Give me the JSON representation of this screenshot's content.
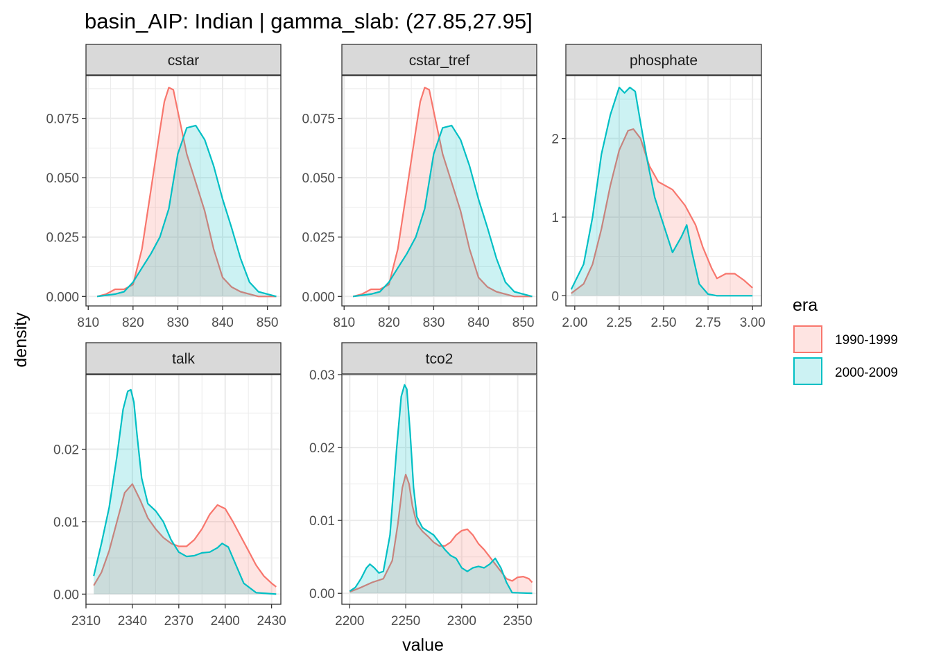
{
  "title": "basin_AIP: Indian | gamma_slab: (27.85,27.95]",
  "xlabel": "value",
  "ylabel": "density",
  "legend": {
    "title": "era",
    "position": "right",
    "entries": [
      {
        "label": "1990-1999",
        "color": "#F8766D"
      },
      {
        "label": "2000-2009",
        "color": "#00BFC4"
      }
    ]
  },
  "colors": {
    "era_1990": "#F8766D",
    "era_2000": "#00BFC4",
    "grid": "#ebebeb",
    "strip": "#d9d9d9"
  },
  "chart_data": [
    {
      "type": "area",
      "panel": "cstar",
      "xlim": [
        809.5,
        853
      ],
      "ylim": [
        -0.004,
        0.093
      ],
      "xticks": [
        810,
        820,
        830,
        840,
        850
      ],
      "xtick_labels": [
        "810",
        "820",
        "830",
        "840",
        "850"
      ],
      "yticks": [
        0,
        0.025,
        0.05,
        0.075
      ],
      "ytick_labels": [
        "0.000",
        "0.025",
        "0.050",
        "0.075"
      ],
      "grid": true,
      "series": [
        {
          "name": "1990-1999",
          "x": [
            812,
            814,
            816,
            818,
            820,
            822,
            824,
            826,
            827,
            828,
            829,
            830,
            832,
            834,
            836,
            838,
            840,
            842,
            844,
            846,
            848,
            850,
            852
          ],
          "y": [
            0.0,
            0.001,
            0.003,
            0.003,
            0.005,
            0.02,
            0.045,
            0.07,
            0.082,
            0.088,
            0.087,
            0.078,
            0.06,
            0.048,
            0.036,
            0.02,
            0.008,
            0.004,
            0.002,
            0.001,
            0.0,
            0.0,
            0.0
          ]
        },
        {
          "name": "2000-2009",
          "x": [
            812,
            816,
            818,
            820,
            822,
            824,
            826,
            828,
            830,
            832,
            834,
            836,
            838,
            840,
            842,
            844,
            846,
            848,
            850,
            852
          ],
          "y": [
            0.0,
            0.001,
            0.002,
            0.006,
            0.012,
            0.018,
            0.025,
            0.037,
            0.06,
            0.071,
            0.072,
            0.066,
            0.055,
            0.041,
            0.029,
            0.016,
            0.006,
            0.002,
            0.001,
            0.0
          ]
        }
      ]
    },
    {
      "type": "area",
      "panel": "cstar_tref",
      "xlim": [
        809.5,
        853
      ],
      "ylim": [
        -0.004,
        0.093
      ],
      "xticks": [
        810,
        820,
        830,
        840,
        850
      ],
      "xtick_labels": [
        "810",
        "820",
        "830",
        "840",
        "850"
      ],
      "yticks": [
        0,
        0.025,
        0.05,
        0.075
      ],
      "ytick_labels": [
        "0.000",
        "0.025",
        "0.050",
        "0.075"
      ],
      "grid": true,
      "series": [
        {
          "name": "1990-1999",
          "x": [
            812,
            814,
            816,
            818,
            820,
            822,
            824,
            826,
            827,
            828,
            829,
            830,
            832,
            834,
            836,
            838,
            840,
            842,
            844,
            846,
            848,
            850,
            852
          ],
          "y": [
            0.0,
            0.001,
            0.003,
            0.003,
            0.005,
            0.02,
            0.045,
            0.07,
            0.082,
            0.088,
            0.087,
            0.078,
            0.06,
            0.048,
            0.036,
            0.02,
            0.008,
            0.004,
            0.002,
            0.001,
            0.0,
            0.0,
            0.0
          ]
        },
        {
          "name": "2000-2009",
          "x": [
            812,
            816,
            818,
            820,
            822,
            824,
            826,
            828,
            830,
            832,
            834,
            836,
            838,
            840,
            842,
            844,
            846,
            848,
            850,
            852
          ],
          "y": [
            0.0,
            0.001,
            0.002,
            0.006,
            0.012,
            0.018,
            0.025,
            0.037,
            0.06,
            0.071,
            0.072,
            0.066,
            0.055,
            0.041,
            0.029,
            0.016,
            0.006,
            0.002,
            0.001,
            0.0
          ]
        }
      ]
    },
    {
      "type": "area",
      "panel": "phosphate",
      "xlim": [
        1.95,
        3.05
      ],
      "ylim": [
        -0.13,
        2.8
      ],
      "xticks": [
        2.0,
        2.25,
        2.5,
        2.75,
        3.0
      ],
      "xtick_labels": [
        "2.00",
        "2.25",
        "2.50",
        "2.75",
        "3.00"
      ],
      "yticks": [
        0,
        1,
        2
      ],
      "ytick_labels": [
        "0",
        "1",
        "2"
      ],
      "grid": true,
      "series": [
        {
          "name": "1990-1999",
          "x": [
            1.98,
            2.05,
            2.1,
            2.15,
            2.2,
            2.25,
            2.3,
            2.33,
            2.37,
            2.42,
            2.47,
            2.55,
            2.62,
            2.68,
            2.72,
            2.77,
            2.8,
            2.85,
            2.9,
            2.95,
            3.0
          ],
          "y": [
            0.03,
            0.15,
            0.4,
            0.85,
            1.4,
            1.85,
            2.1,
            2.12,
            2.0,
            1.65,
            1.45,
            1.35,
            1.15,
            0.9,
            0.62,
            0.35,
            0.22,
            0.28,
            0.28,
            0.2,
            0.1
          ]
        },
        {
          "name": "2000-2009",
          "x": [
            1.98,
            2.05,
            2.1,
            2.15,
            2.2,
            2.25,
            2.28,
            2.31,
            2.34,
            2.37,
            2.41,
            2.45,
            2.5,
            2.55,
            2.6,
            2.63,
            2.66,
            2.7,
            2.75,
            2.8,
            2.9,
            3.0
          ],
          "y": [
            0.08,
            0.4,
            1.0,
            1.8,
            2.3,
            2.65,
            2.58,
            2.65,
            2.6,
            2.2,
            1.7,
            1.25,
            0.9,
            0.55,
            0.75,
            0.9,
            0.55,
            0.15,
            0.02,
            0.0,
            0.0,
            0.0
          ]
        }
      ]
    },
    {
      "type": "area",
      "panel": "talk",
      "xlim": [
        2310,
        2436
      ],
      "ylim": [
        -0.0014,
        0.0303
      ],
      "xticks": [
        2310,
        2340,
        2370,
        2400,
        2430
      ],
      "xtick_labels": [
        "2310",
        "2340",
        "2370",
        "2400",
        "2430"
      ],
      "yticks": [
        0,
        0.01,
        0.02
      ],
      "ytick_labels": [
        "0.00",
        "0.01",
        "0.02"
      ],
      "grid": true,
      "series": [
        {
          "name": "1990-1999",
          "x": [
            2315,
            2320,
            2325,
            2330,
            2335,
            2340,
            2345,
            2350,
            2355,
            2360,
            2365,
            2370,
            2375,
            2380,
            2385,
            2390,
            2395,
            2400,
            2405,
            2410,
            2415,
            2420,
            2425,
            2430,
            2433
          ],
          "y": [
            0.0012,
            0.003,
            0.006,
            0.01,
            0.014,
            0.0152,
            0.013,
            0.0105,
            0.009,
            0.0078,
            0.007,
            0.0066,
            0.0066,
            0.0075,
            0.009,
            0.011,
            0.0123,
            0.0118,
            0.01,
            0.008,
            0.006,
            0.004,
            0.0025,
            0.0015,
            0.001
          ]
        },
        {
          "name": "2000-2009",
          "x": [
            2315,
            2320,
            2325,
            2330,
            2334,
            2337,
            2339,
            2341,
            2343,
            2346,
            2350,
            2355,
            2360,
            2365,
            2370,
            2375,
            2380,
            2385,
            2390,
            2395,
            2398,
            2402,
            2407,
            2412,
            2420,
            2433
          ],
          "y": [
            0.0025,
            0.007,
            0.012,
            0.019,
            0.0255,
            0.028,
            0.0282,
            0.0265,
            0.022,
            0.016,
            0.0125,
            0.0115,
            0.01,
            0.0075,
            0.0058,
            0.0052,
            0.0053,
            0.0057,
            0.0058,
            0.0064,
            0.007,
            0.0065,
            0.004,
            0.0015,
            0.0002,
            0.0
          ]
        }
      ]
    },
    {
      "type": "area",
      "panel": "tco2",
      "xlim": [
        2193,
        2367
      ],
      "ylim": [
        -0.0015,
        0.03
      ],
      "xticks": [
        2200,
        2250,
        2300,
        2350
      ],
      "xtick_labels": [
        "2200",
        "2250",
        "2300",
        "2350"
      ],
      "yticks": [
        0,
        0.01,
        0.02,
        0.03
      ],
      "ytick_labels": [
        "0.00",
        "0.01",
        "0.02",
        "0.03"
      ],
      "grid": true,
      "series": [
        {
          "name": "1990-1999",
          "x": [
            2200,
            2210,
            2220,
            2230,
            2238,
            2243,
            2247,
            2250,
            2253,
            2256,
            2260,
            2265,
            2270,
            2275,
            2280,
            2285,
            2290,
            2295,
            2300,
            2305,
            2310,
            2315,
            2320,
            2325,
            2330,
            2335,
            2340,
            2345,
            2350,
            2355,
            2360,
            2363
          ],
          "y": [
            0.0002,
            0.0008,
            0.0015,
            0.002,
            0.0045,
            0.0095,
            0.0145,
            0.0163,
            0.015,
            0.012,
            0.0095,
            0.0085,
            0.0078,
            0.007,
            0.0065,
            0.0065,
            0.007,
            0.008,
            0.0086,
            0.0088,
            0.008,
            0.0068,
            0.006,
            0.005,
            0.004,
            0.003,
            0.002,
            0.0017,
            0.0022,
            0.0023,
            0.002,
            0.0015
          ]
        },
        {
          "name": "2000-2009",
          "x": [
            2200,
            2205,
            2210,
            2215,
            2218,
            2222,
            2226,
            2230,
            2236,
            2242,
            2246,
            2249,
            2251,
            2254,
            2257,
            2260,
            2265,
            2270,
            2275,
            2280,
            2285,
            2290,
            2295,
            2300,
            2305,
            2310,
            2315,
            2320,
            2325,
            2330,
            2335,
            2340,
            2345,
            2363
          ],
          "y": [
            0.0003,
            0.0008,
            0.002,
            0.0035,
            0.004,
            0.0035,
            0.0028,
            0.003,
            0.008,
            0.02,
            0.027,
            0.0286,
            0.028,
            0.022,
            0.0145,
            0.0105,
            0.009,
            0.0085,
            0.008,
            0.007,
            0.006,
            0.0052,
            0.0048,
            0.0035,
            0.003,
            0.0035,
            0.0037,
            0.0035,
            0.004,
            0.0048,
            0.0035,
            0.0015,
            0.0001,
            0.0
          ]
        }
      ]
    }
  ]
}
